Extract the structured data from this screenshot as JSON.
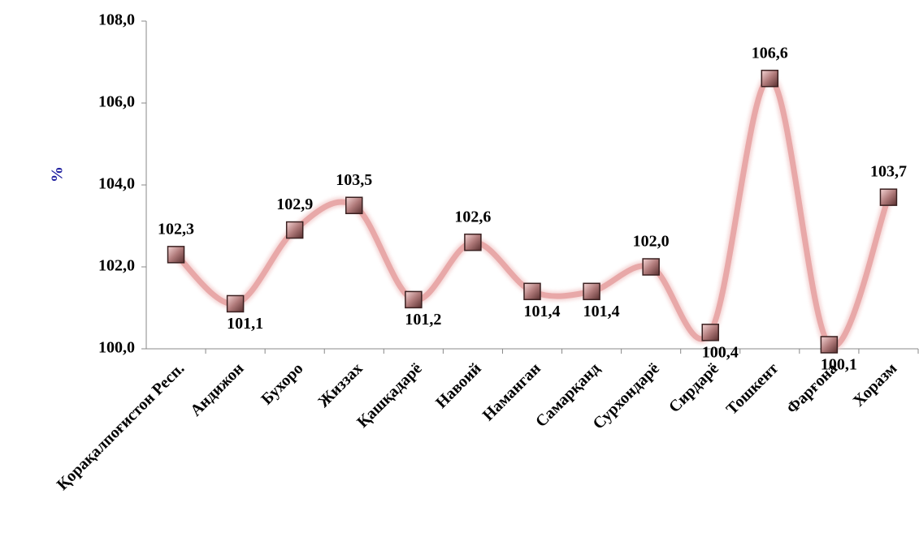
{
  "chart_data": {
    "type": "line",
    "y_label": "%",
    "categories": [
      "Қорақалпоғистон Респ.",
      "Андижон",
      "Бухоро",
      "Жиззах",
      "Қашқадарё",
      "Навоий",
      "Наманган",
      "Самарқанд",
      "Сурхондарё",
      "Сирдарё",
      "Тошкент",
      "Фарғона",
      "Хоразм"
    ],
    "series": [
      {
        "color": "#e8a8a8",
        "values": [
          102.3,
          101.1,
          102.9,
          103.5,
          101.2,
          102.6,
          101.4,
          101.4,
          102.0,
          100.4,
          106.6,
          100.1,
          103.7
        ],
        "value_labels": [
          "102,3",
          "101,1",
          "102,9",
          "103,5",
          "101,2",
          "102,6",
          "101,4",
          "101,4",
          "102,0",
          "100,4",
          "106,6",
          "100,1",
          "103,7"
        ]
      }
    ],
    "ylim": [
      100,
      108
    ],
    "yticks": [
      {
        "value": 100,
        "label": "100,0"
      },
      {
        "value": 102,
        "label": "102,0"
      },
      {
        "value": 104,
        "label": "104,0"
      },
      {
        "value": 106,
        "label": "106,0"
      },
      {
        "value": 108,
        "label": "108,0"
      }
    ],
    "smooth": true
  }
}
